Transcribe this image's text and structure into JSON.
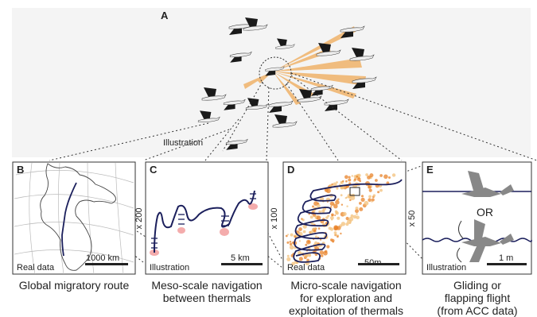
{
  "panel_a": {
    "letter": "A",
    "illustration_label": "Illustration"
  },
  "panels": [
    {
      "letter": "B",
      "bottom_left": "Real data",
      "scale_label": "1000 km",
      "side_label": ""
    },
    {
      "letter": "C",
      "bottom_left": "Illustration",
      "scale_label": "5 km",
      "side_label": "x 200"
    },
    {
      "letter": "D",
      "bottom_left": "Real data",
      "scale_label": "50m",
      "side_label": "x 100"
    },
    {
      "letter": "E",
      "bottom_left": "Illustration",
      "scale_label": "1 m",
      "side_label": "x 50",
      "or_label": "OR"
    }
  ],
  "captions": [
    {
      "line1": "Global migratory route",
      "line2": "",
      "line3": ""
    },
    {
      "line1": "Meso-scale navigation",
      "line2": "between thermals",
      "line3": ""
    },
    {
      "line1": "Micro-scale navigation",
      "line2": "for exploration and",
      "line3": "exploitation of thermals"
    },
    {
      "line1": "Gliding or",
      "line2": "flapping flight",
      "line3": "(from ACC data)"
    }
  ],
  "colors": {
    "beam": "#f0b36a",
    "track": "#1b1f5c",
    "thermal": "#e8832a",
    "bird_dark": "#1a1a1a",
    "bird_grey": "#8a8a8a",
    "sky": "#f4f4f4"
  }
}
